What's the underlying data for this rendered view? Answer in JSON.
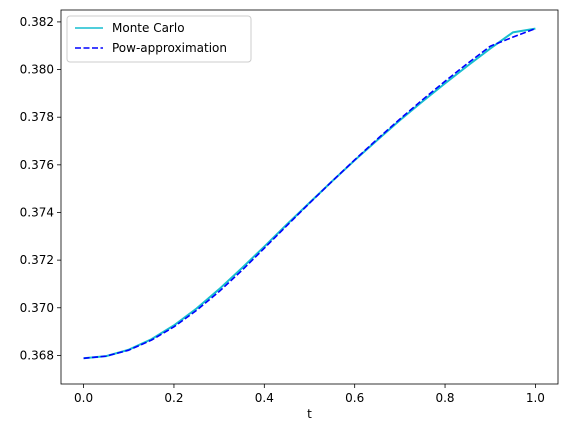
{
  "chart_data": {
    "type": "line",
    "title": "",
    "xlabel": "t",
    "ylabel": "",
    "xlim": [
      -0.05,
      1.05
    ],
    "ylim": [
      0.3668,
      0.3825
    ],
    "xticks": [
      "0.0",
      "0.2",
      "0.4",
      "0.6",
      "0.8",
      "1.0"
    ],
    "yticks": [
      "0.368",
      "0.370",
      "0.372",
      "0.374",
      "0.376",
      "0.378",
      "0.380",
      "0.382"
    ],
    "grid": false,
    "legend_position": "top-left",
    "series": [
      {
        "name": "Monte Carlo",
        "color": "#17becf",
        "style": "solid",
        "x": [
          0.0,
          0.05,
          0.1,
          0.15,
          0.2,
          0.25,
          0.3,
          0.35,
          0.4,
          0.45,
          0.5,
          0.55,
          0.6,
          0.65,
          0.7,
          0.75,
          0.8,
          0.85,
          0.9,
          0.95,
          1.0
        ],
        "y": [
          0.36788,
          0.36797,
          0.36824,
          0.36868,
          0.36926,
          0.36997,
          0.37078,
          0.37166,
          0.37257,
          0.3735,
          0.37441,
          0.37531,
          0.37619,
          0.37704,
          0.37787,
          0.37866,
          0.37942,
          0.38016,
          0.38088,
          0.38156,
          0.38172
        ]
      },
      {
        "name": "Pow-approximation",
        "color": "#0000ff",
        "style": "dashed",
        "x": [
          0.0,
          0.05,
          0.1,
          0.15,
          0.2,
          0.25,
          0.3,
          0.35,
          0.4,
          0.45,
          0.5,
          0.55,
          0.6,
          0.65,
          0.7,
          0.75,
          0.8,
          0.85,
          0.9,
          0.95,
          1.0
        ],
        "y": [
          0.36788,
          0.36797,
          0.36822,
          0.36864,
          0.3692,
          0.36989,
          0.37068,
          0.37156,
          0.3725,
          0.37345,
          0.37439,
          0.37531,
          0.37621,
          0.37708,
          0.37792,
          0.37873,
          0.37951,
          0.38026,
          0.38098,
          0.38136,
          0.38172
        ]
      }
    ]
  }
}
